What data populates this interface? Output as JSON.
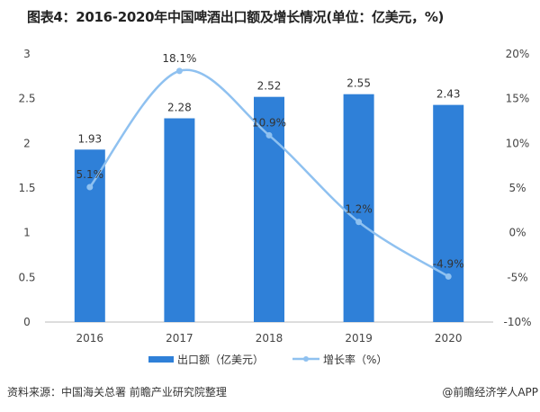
{
  "title": "图表4：2016-2020年中国啤酒出口额及增长情况(单位：亿美元，%)",
  "source": "资料来源：中国海关总署 前瞻产业研究院整理",
  "brand": "@前瞻经济学人APP",
  "chart_data": {
    "type": "bar+line",
    "categories": [
      "2016",
      "2017",
      "2018",
      "2019",
      "2020"
    ],
    "series": [
      {
        "name": "出口额（亿美元）",
        "type": "bar",
        "axis": "left",
        "color": "#2f80d8",
        "values": [
          1.93,
          2.28,
          2.52,
          2.55,
          2.43
        ],
        "labels": [
          "1.93",
          "2.28",
          "2.52",
          "2.55",
          "2.43"
        ]
      },
      {
        "name": "增长率（%）",
        "type": "line",
        "axis": "right",
        "color": "#8fc1f0",
        "smooth": true,
        "values": [
          5.1,
          18.1,
          10.9,
          1.2,
          -4.9
        ],
        "labels": [
          "5.1%",
          "18.1%",
          "10.9%",
          "1.2%",
          "-4.9%"
        ]
      }
    ],
    "y_left": {
      "range": [
        0,
        3
      ],
      "ticks": [
        "0",
        "0.5",
        "1",
        "1.5",
        "2",
        "2.5",
        "3"
      ]
    },
    "y_right": {
      "range": [
        -10,
        20
      ],
      "ticks": [
        "-10%",
        "-5%",
        "0%",
        "5%",
        "10%",
        "15%",
        "20%"
      ]
    },
    "grid": false,
    "legend_position": "bottom"
  }
}
